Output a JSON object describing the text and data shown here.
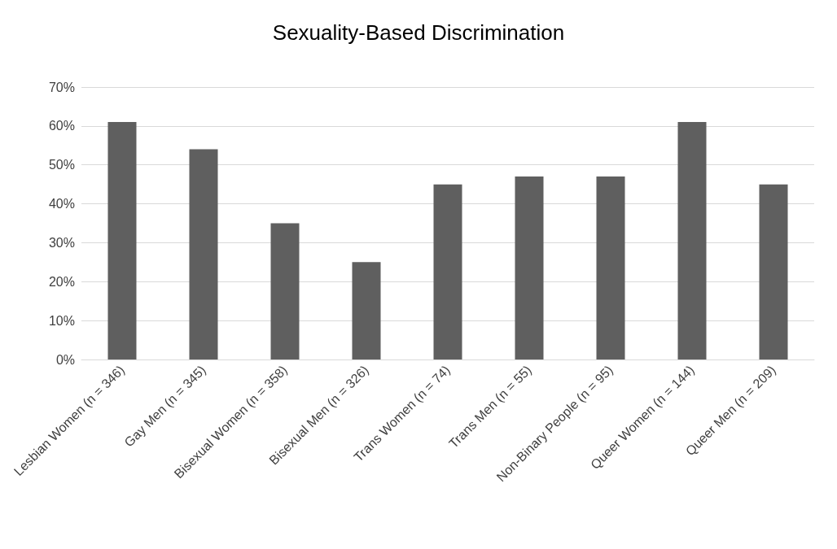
{
  "chart_data": {
    "type": "bar",
    "title": "Sexuality-Based Discrimination",
    "categories": [
      "Lesbian Women (n = 346)",
      "Gay Men (n = 345)",
      "Bisexual Women (n = 358)",
      "Bisexual Men (n = 326)",
      "Trans Women (n = 74)",
      "Trans Men (n = 55)",
      "Non-Binary People (n = 95)",
      "Queer Women (n = 144)",
      "Queer Men (n = 209)"
    ],
    "values": [
      61,
      54,
      35,
      25,
      45,
      47,
      47,
      61,
      45
    ],
    "color": "#5f5f5f",
    "ylim": [
      0,
      70
    ],
    "yticks": [
      {
        "value": 0,
        "label": "0%"
      },
      {
        "value": 10,
        "label": "10%"
      },
      {
        "value": 20,
        "label": "20%"
      },
      {
        "value": 30,
        "label": "30%"
      },
      {
        "value": 40,
        "label": "40%"
      },
      {
        "value": 50,
        "label": "50%"
      },
      {
        "value": 60,
        "label": "60%"
      },
      {
        "value": 70,
        "label": "70%"
      }
    ],
    "grid": "y"
  }
}
